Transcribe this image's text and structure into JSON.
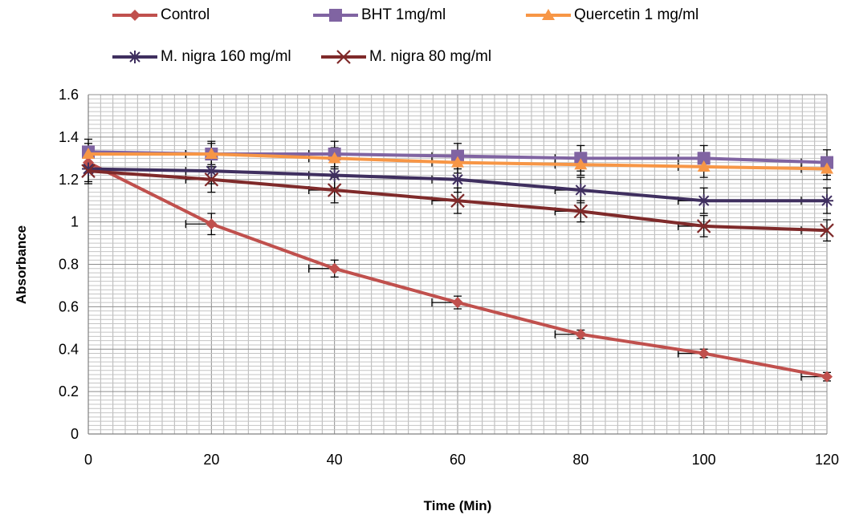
{
  "chart_data": {
    "type": "line",
    "xlabel": "Time (Min)",
    "ylabel": "Absorbance",
    "x": [
      0,
      20,
      40,
      60,
      80,
      100,
      120
    ],
    "xlim": [
      0,
      120
    ],
    "ylim": [
      0,
      1.6
    ],
    "x_ticks": [
      "0",
      "20",
      "40",
      "60",
      "80",
      "100",
      "120"
    ],
    "y_ticks": [
      "0",
      "0.2",
      "0.4",
      "0.6",
      "0.8",
      "1",
      "1.2",
      "1.4",
      "1.6"
    ],
    "grid": true,
    "legend_position": "top",
    "series": [
      {
        "name": "Control",
        "color": "#C0504D",
        "marker": "diamond",
        "values": [
          1.28,
          0.99,
          0.78,
          0.62,
          0.47,
          0.38,
          0.27
        ],
        "error": [
          0.0,
          0.05,
          0.04,
          0.03,
          0.02,
          0.02,
          0.02
        ]
      },
      {
        "name": "BHT 1mg/ml",
        "color": "#8064A2",
        "marker": "square",
        "values": [
          1.33,
          1.32,
          1.32,
          1.31,
          1.3,
          1.3,
          1.28
        ],
        "error": [
          0.06,
          0.06,
          0.06,
          0.06,
          0.06,
          0.06,
          0.06
        ]
      },
      {
        "name": "Quercetin 1 mg/ml",
        "color": "#F79646",
        "marker": "triangle",
        "values": [
          1.32,
          1.32,
          1.3,
          1.28,
          1.27,
          1.26,
          1.25
        ],
        "error": [
          0.05,
          0.05,
          0.05,
          0.05,
          0.05,
          0.05,
          0.05
        ]
      },
      {
        "name": "M. nigra 160 mg/ml",
        "color": "#3F2F5F",
        "marker": "star",
        "values": [
          1.25,
          1.24,
          1.22,
          1.2,
          1.15,
          1.1,
          1.1
        ],
        "error": [
          0.06,
          0.06,
          0.06,
          0.06,
          0.06,
          0.06,
          0.06
        ]
      },
      {
        "name": "M. nigra  80 mg/ml",
        "color": "#7F2A2A",
        "marker": "x",
        "values": [
          1.24,
          1.2,
          1.15,
          1.1,
          1.05,
          0.98,
          0.96
        ],
        "error": [
          0.06,
          0.06,
          0.06,
          0.06,
          0.05,
          0.05,
          0.05
        ]
      }
    ]
  }
}
